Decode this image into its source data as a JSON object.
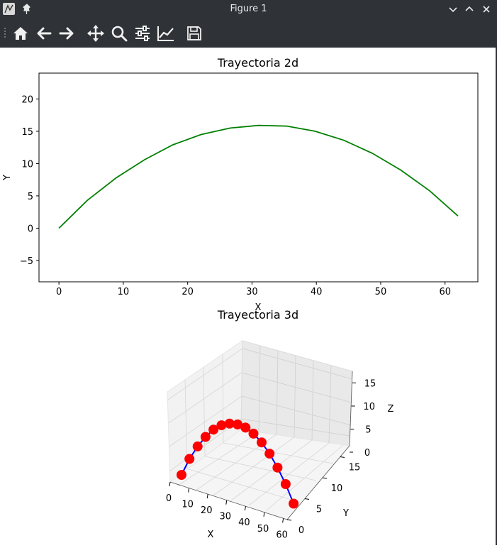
{
  "window": {
    "title": "Figure 1"
  },
  "toolbar": {
    "tools": [
      "home",
      "back",
      "forward",
      "pan",
      "zoom",
      "configure-subplots",
      "edit-axes",
      "save"
    ]
  },
  "colors": {
    "line2d": "#008000",
    "line3d": "#0000ff",
    "markers": "#ff0000",
    "chrome": "#2f3237"
  },
  "chart_data": [
    {
      "type": "line",
      "title": "Trayectoria 2d",
      "xlabel": "X",
      "ylabel": "Y",
      "xlim": [
        -3.1,
        65.1
      ],
      "ylim": [
        -8.3,
        24.0
      ],
      "xticks": [
        "0",
        "10",
        "20",
        "30",
        "40",
        "50",
        "60"
      ],
      "yticks": [
        "−5",
        "0",
        "5",
        "10",
        "15",
        "20"
      ],
      "series": [
        {
          "x": [
            0,
            4.4,
            8.9,
            13.3,
            17.7,
            22.1,
            26.6,
            31.0,
            35.4,
            39.8,
            44.3,
            48.7,
            53.1,
            57.6,
            62.0
          ],
          "y": [
            0,
            4.3,
            7.8,
            10.6,
            12.9,
            14.5,
            15.5,
            15.9,
            15.8,
            15.0,
            13.6,
            11.6,
            9.0,
            5.8,
            1.9
          ]
        }
      ]
    },
    {
      "type": "line",
      "title": "Trayectoria 3d",
      "xlabel": "X",
      "ylabel": "Y",
      "zlabel": "Z",
      "xticks": [
        "0",
        "10",
        "20",
        "30",
        "40",
        "50",
        "60"
      ],
      "yticks": [
        "0",
        "5",
        "10",
        "15"
      ],
      "zticks": [
        "0",
        "5",
        "10",
        "15"
      ],
      "series": [
        {
          "x": [
            0,
            4.4,
            8.9,
            13.3,
            17.7,
            22.1,
            26.6,
            31.0,
            35.4,
            39.8,
            44.3,
            48.7,
            53.1,
            57.6,
            62.0
          ],
          "z": [
            0,
            4.3,
            7.8,
            10.6,
            12.9,
            14.5,
            15.5,
            15.9,
            15.8,
            15.0,
            13.6,
            11.6,
            9.0,
            5.8,
            1.9
          ]
        }
      ]
    }
  ]
}
